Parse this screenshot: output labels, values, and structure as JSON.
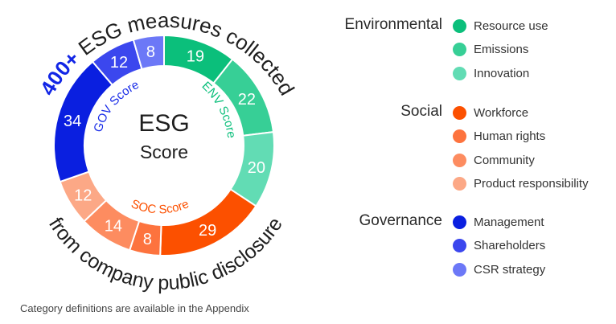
{
  "chart_data": {
    "type": "pie",
    "center_label": [
      "ESG",
      "Score"
    ],
    "outer_text_top": "400+ ESG measures collected",
    "outer_text_top_highlight": "400+",
    "outer_text_bottom": "from company public disclosure",
    "segments": [
      {
        "group": "Environmental",
        "category": "Resource use",
        "value": 19,
        "color": "#0bbf7b"
      },
      {
        "group": "Environmental",
        "category": "Emissions",
        "value": 22,
        "color": "#37cf96"
      },
      {
        "group": "Environmental",
        "category": "Innovation",
        "value": 20,
        "color": "#62dcb4"
      },
      {
        "group": "Social",
        "category": "Workforce",
        "value": 29,
        "color": "#fc5000"
      },
      {
        "group": "Social",
        "category": "Human rights",
        "value": 8,
        "color": "#fd733e"
      },
      {
        "group": "Social",
        "category": "Community",
        "value": 14,
        "color": "#fd8c60"
      },
      {
        "group": "Social",
        "category": "Product responsibility",
        "value": 12,
        "color": "#fca886"
      },
      {
        "group": "Governance",
        "category": "Management",
        "value": 34,
        "color": "#0a1fe0"
      },
      {
        "group": "Governance",
        "category": "Shareholders",
        "value": 12,
        "color": "#3b47ee"
      },
      {
        "group": "Governance",
        "category": "CSR strategy",
        "value": 8,
        "color": "#6c78f7"
      }
    ],
    "inner_labels": [
      {
        "text": "ENV Score",
        "color": "#0bbf7b"
      },
      {
        "text": "SOC Score",
        "color": "#fc5000"
      },
      {
        "text": "GOV Score",
        "color": "#1a2de8"
      }
    ]
  },
  "legend": {
    "groups": [
      {
        "title": "Environmental",
        "items": [
          {
            "label": "Resource use",
            "color": "#0bbf7b"
          },
          {
            "label": "Emissions",
            "color": "#37cf96"
          },
          {
            "label": "Innovation",
            "color": "#62dcb4"
          }
        ]
      },
      {
        "title": "Social",
        "items": [
          {
            "label": "Workforce",
            "color": "#fc5000"
          },
          {
            "label": "Human rights",
            "color": "#fd733e"
          },
          {
            "label": "Community",
            "color": "#fd8c60"
          },
          {
            "label": "Product responsibility",
            "color": "#fca886"
          }
        ]
      },
      {
        "title": "Governance",
        "items": [
          {
            "label": "Management",
            "color": "#0a1fe0"
          },
          {
            "label": "Shareholders",
            "color": "#3b47ee"
          },
          {
            "label": "CSR strategy",
            "color": "#6c78f7"
          }
        ]
      }
    ]
  },
  "footnote": "Category definitions are available in the Appendix"
}
